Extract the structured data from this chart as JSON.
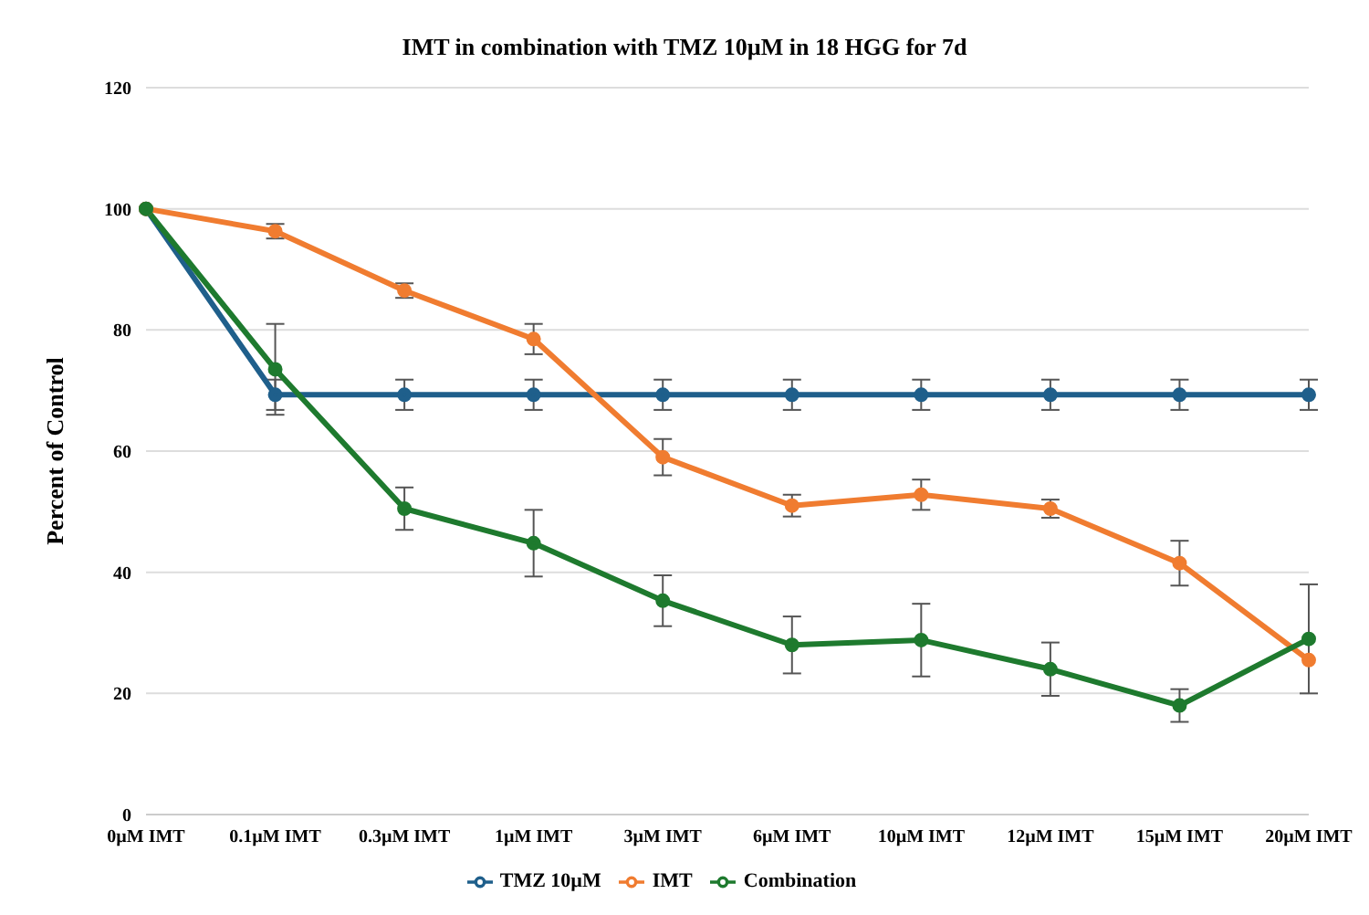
{
  "chart_data": {
    "type": "line",
    "title": "IMT in combination with TMZ 10µM in 18 HGG for 7d",
    "ylabel": "Percent of Control",
    "categories": [
      "0µM IMT",
      "0.1µM IMT",
      "0.3µM IMT",
      "1µM  IMT",
      "3µM IMT",
      "6µM IMT",
      "10µM IMT",
      "12µM IMT",
      "15µM IMT",
      "20µM IMT"
    ],
    "series": [
      {
        "name": "TMZ 10µM",
        "color": "#1f5f8b",
        "values": [
          100,
          69.3,
          69.3,
          69.3,
          69.3,
          69.3,
          69.3,
          69.3,
          69.3,
          69.3
        ],
        "errors": [
          null,
          2.5,
          2.5,
          2.5,
          2.5,
          2.5,
          2.5,
          2.5,
          2.5,
          2.5
        ]
      },
      {
        "name": "IMT",
        "color": "#f07c30",
        "values": [
          100,
          96.3,
          86.5,
          78.5,
          59,
          51,
          52.8,
          50.5,
          41.5,
          25.5
        ],
        "errors": [
          null,
          1.2,
          1.2,
          2.5,
          3,
          1.8,
          2.5,
          1.5,
          3.7,
          null
        ]
      },
      {
        "name": "Combination",
        "color": "#1e7a2e",
        "values": [
          100,
          73.5,
          50.5,
          44.8,
          35.3,
          28,
          28.8,
          24,
          18,
          29
        ],
        "errors": [
          null,
          7.5,
          3.5,
          5.5,
          4.2,
          4.7,
          6,
          4.4,
          2.7,
          9
        ]
      }
    ],
    "ylim": [
      0,
      120
    ],
    "yticks": [
      0,
      20,
      40,
      60,
      80,
      100,
      120
    ],
    "grid": "y",
    "legend": "bottom",
    "marker": "circle",
    "line_style": "solid"
  }
}
